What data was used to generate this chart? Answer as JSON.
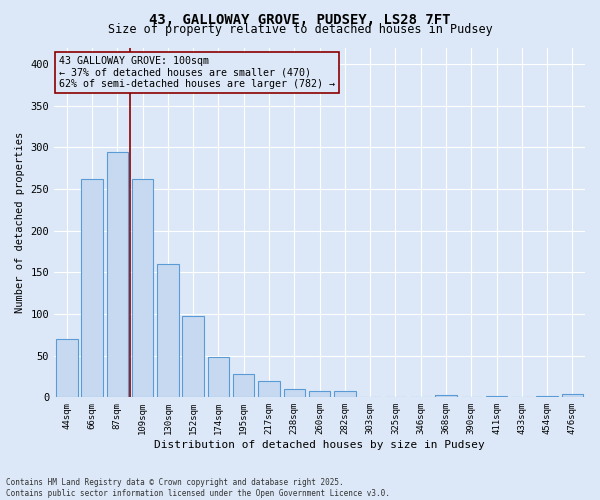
{
  "title1": "43, GALLOWAY GROVE, PUDSEY, LS28 7FT",
  "title2": "Size of property relative to detached houses in Pudsey",
  "xlabel": "Distribution of detached houses by size in Pudsey",
  "ylabel": "Number of detached properties",
  "bar_color": "#c6d9f0",
  "bar_edge_color": "#5b9bd5",
  "bg_color": "#dce8f7",
  "grid_color": "#ffffff",
  "categories": [
    "44sqm",
    "66sqm",
    "87sqm",
    "109sqm",
    "130sqm",
    "152sqm",
    "174sqm",
    "195sqm",
    "217sqm",
    "238sqm",
    "260sqm",
    "282sqm",
    "303sqm",
    "325sqm",
    "346sqm",
    "368sqm",
    "390sqm",
    "411sqm",
    "433sqm",
    "454sqm",
    "476sqm"
  ],
  "values": [
    70,
    262,
    295,
    262,
    160,
    98,
    48,
    28,
    20,
    10,
    8,
    8,
    0,
    0,
    0,
    3,
    0,
    2,
    0,
    2,
    4
  ],
  "ylim": [
    0,
    420
  ],
  "yticks": [
    0,
    50,
    100,
    150,
    200,
    250,
    300,
    350,
    400
  ],
  "annotation_text": "43 GALLOWAY GROVE: 100sqm\n← 37% of detached houses are smaller (470)\n62% of semi-detached houses are larger (782) →",
  "vline_color": "#8b0000",
  "vline_x": 2.5,
  "annotation_box_edgecolor": "#8b0000",
  "footnote1": "Contains HM Land Registry data © Crown copyright and database right 2025.",
  "footnote2": "Contains public sector information licensed under the Open Government Licence v3.0."
}
